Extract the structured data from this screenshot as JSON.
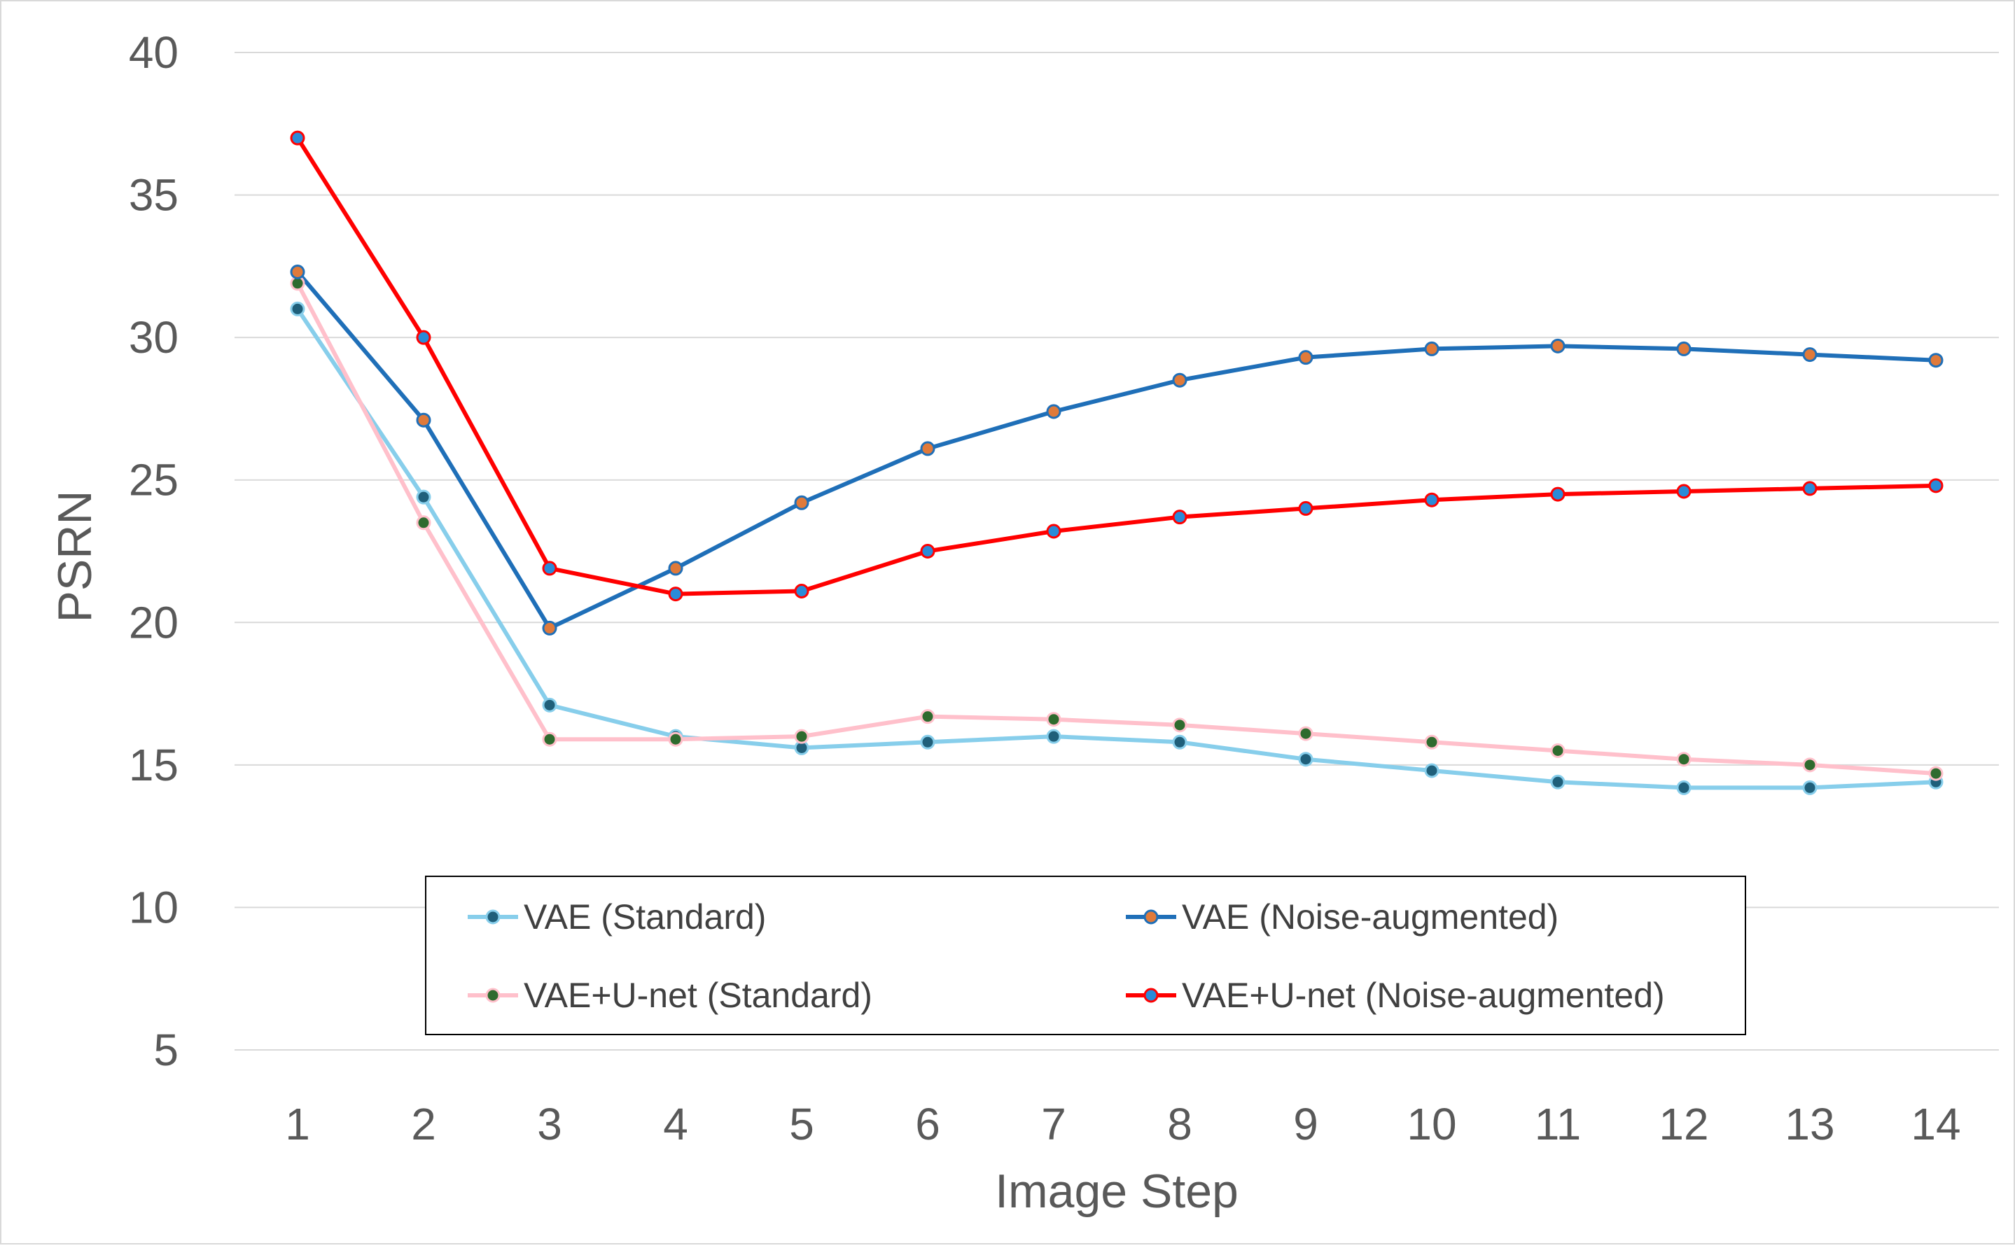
{
  "chart_data": {
    "type": "line",
    "title": "",
    "xlabel": "Image Step",
    "ylabel": "PSRN",
    "x": [
      1,
      2,
      3,
      4,
      5,
      6,
      7,
      8,
      9,
      10,
      11,
      12,
      13,
      14
    ],
    "ylim": [
      5,
      40
    ],
    "yticks": [
      5,
      10,
      15,
      20,
      25,
      30,
      35,
      40
    ],
    "grid": "horizontal",
    "legend_position": "bottom-center",
    "series": [
      {
        "name": "VAE (Standard)",
        "color": "#87ceeb",
        "marker_color": "#1f5f7a",
        "values": [
          31.0,
          24.4,
          17.1,
          16.0,
          15.6,
          15.8,
          16.0,
          15.8,
          15.2,
          14.8,
          14.4,
          14.2,
          14.2,
          14.4
        ]
      },
      {
        "name": "VAE (Noise-augmented)",
        "color": "#1f6fb8",
        "marker_color": "#e07a3a",
        "values": [
          32.3,
          27.1,
          19.8,
          21.9,
          24.2,
          26.1,
          27.4,
          28.5,
          29.3,
          29.6,
          29.7,
          29.6,
          29.4,
          29.2
        ]
      },
      {
        "name": "VAE+U-net (Standard)",
        "color": "#ffc0cb",
        "marker_color": "#2e6b2e",
        "values": [
          31.9,
          23.5,
          15.9,
          15.9,
          16.0,
          16.7,
          16.6,
          16.4,
          16.1,
          15.8,
          15.5,
          15.2,
          15.0,
          14.7
        ]
      },
      {
        "name": "VAE+U-net (Noise-augmented)",
        "color": "#ff0000",
        "marker_color": "#2a8bd8",
        "values": [
          37.0,
          30.0,
          21.9,
          21.0,
          21.1,
          22.5,
          23.2,
          23.7,
          24.0,
          24.3,
          24.5,
          24.6,
          24.7,
          24.8
        ]
      }
    ]
  }
}
